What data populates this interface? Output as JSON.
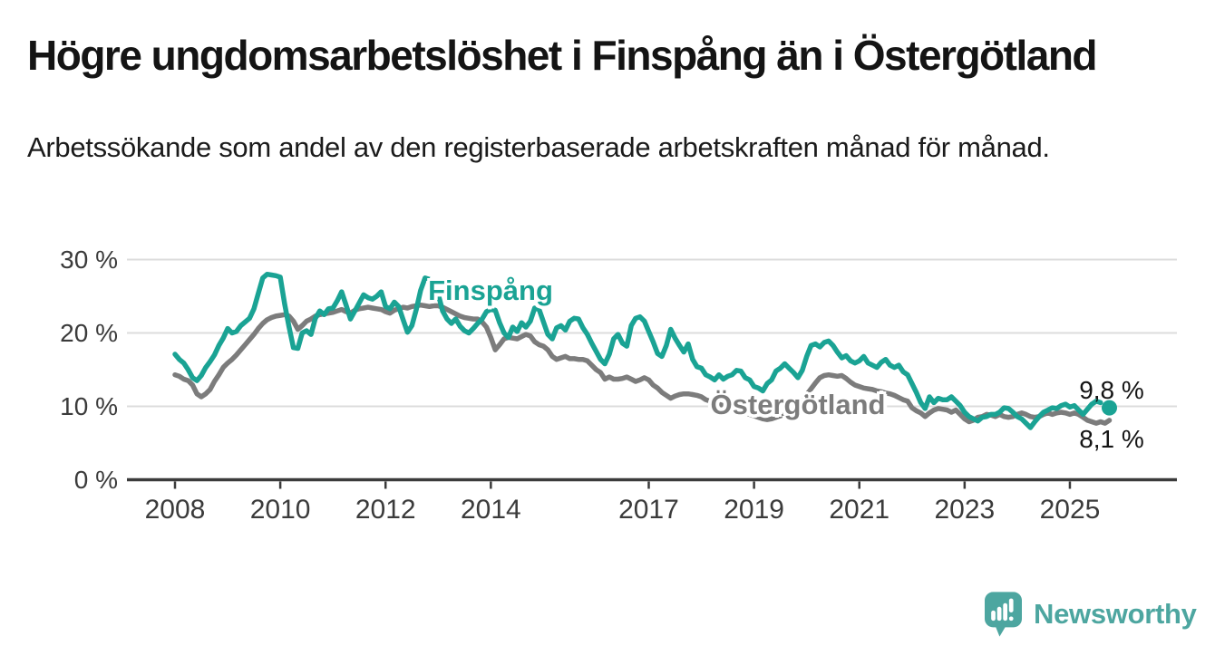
{
  "header": {
    "title": "Högre ungdomsarbetslöshet i Finspång än i Östergötland",
    "subtitle": "Arbetssökande som andel av den registerbaserade arbetskraften månad för månad."
  },
  "chart_data": {
    "type": "line",
    "title": "Högre ungdomsarbetslöshet i Finspång än i Östergötland",
    "subtitle": "Arbetssökande som andel av den registerbaserade arbetskraften månad för månad.",
    "x_unit": "month",
    "x_start": "2008-01",
    "x_end": "2025-10",
    "xticks": [
      2008,
      2010,
      2012,
      2014,
      2017,
      2019,
      2021,
      2023,
      2025
    ],
    "yticks": [
      {
        "value": 0,
        "label": "0 %"
      },
      {
        "value": 10,
        "label": "10 %"
      },
      {
        "value": 20,
        "label": "20 %"
      },
      {
        "value": 30,
        "label": "30 %"
      }
    ],
    "ylim": [
      0,
      32
    ],
    "grid": "horizontal-only",
    "legend": "inline-labels",
    "series": [
      {
        "name": "Finspång",
        "color": "#1AA394",
        "end_label": "9,8 %",
        "end_value": 9.8,
        "end_dot": true,
        "dashed_tail_from_index": 209,
        "values": [
          17.1,
          16.4,
          15.9,
          15.0,
          13.9,
          13.5,
          14.2,
          15.3,
          16.1,
          17.0,
          18.3,
          19.3,
          20.6,
          20.0,
          20.2,
          21.0,
          21.5,
          22.0,
          23.3,
          25.4,
          27.5,
          28.0,
          27.9,
          27.8,
          27.6,
          23.9,
          20.8,
          18.0,
          17.9,
          20.0,
          20.3,
          19.8,
          22.0,
          23.0,
          22.5,
          23.3,
          23.4,
          24.4,
          25.6,
          23.8,
          21.9,
          23.0,
          24.1,
          25.2,
          24.8,
          24.6,
          25.0,
          25.6,
          23.6,
          23.3,
          24.2,
          23.6,
          21.8,
          20.1,
          21.0,
          23.2,
          25.8,
          27.5,
          27.3,
          26.5,
          25.3,
          23.0,
          21.9,
          21.3,
          21.9,
          20.9,
          20.3,
          20.0,
          20.6,
          21.3,
          21.9,
          22.9,
          23.2,
          23.1,
          21.4,
          20.0,
          19.4,
          20.8,
          20.2,
          21.4,
          20.8,
          21.6,
          23.4,
          23.2,
          21.5,
          19.8,
          19.2,
          20.7,
          21.0,
          20.4,
          21.6,
          22.0,
          21.9,
          20.7,
          19.8,
          18.6,
          17.5,
          16.4,
          15.8,
          17.1,
          19.2,
          19.8,
          18.6,
          18.2,
          21.0,
          22.0,
          22.2,
          21.6,
          20.2,
          18.8,
          17.2,
          16.8,
          18.3,
          20.5,
          19.3,
          18.3,
          17.4,
          18.5,
          16.4,
          15.4,
          15.2,
          14.3,
          14.0,
          13.6,
          14.3,
          13.7,
          14.1,
          14.3,
          14.9,
          14.8,
          13.9,
          13.6,
          12.7,
          12.5,
          12.1,
          13.1,
          13.6,
          14.8,
          15.2,
          15.8,
          15.2,
          14.6,
          13.9,
          14.9,
          16.8,
          18.3,
          18.5,
          18.1,
          18.7,
          18.9,
          18.3,
          17.4,
          16.6,
          16.9,
          16.2,
          15.9,
          16.2,
          16.8,
          15.9,
          15.6,
          15.3,
          16.0,
          16.4,
          15.6,
          15.3,
          15.6,
          14.7,
          14.3,
          13.1,
          11.9,
          10.5,
          9.7,
          11.3,
          10.5,
          11.1,
          10.9,
          10.9,
          11.3,
          10.7,
          10.1,
          9.2,
          8.6,
          8.3,
          8.0,
          8.5,
          8.6,
          8.9,
          8.9,
          9.2,
          9.8,
          9.7,
          9.2,
          8.6,
          8.3,
          7.7,
          7.1,
          7.9,
          8.6,
          9.2,
          9.5,
          9.8,
          9.7,
          10.1,
          10.3,
          9.9,
          10.1,
          9.5,
          8.9,
          9.6,
          10.3,
          10.7,
          10.5,
          10.2,
          9.8
        ]
      },
      {
        "name": "Östergötland",
        "color": "#7C7C7C",
        "end_label": "8,1 %",
        "end_value": 8.1,
        "end_dot": false,
        "values": [
          14.3,
          14.1,
          13.7,
          13.5,
          12.9,
          11.7,
          11.3,
          11.7,
          12.3,
          13.4,
          14.3,
          15.3,
          15.9,
          16.4,
          17.0,
          17.7,
          18.4,
          19.1,
          19.8,
          20.6,
          21.3,
          21.8,
          22.1,
          22.3,
          22.4,
          22.5,
          22.3,
          21.6,
          20.5,
          21.0,
          21.6,
          21.9,
          22.3,
          22.5,
          22.6,
          22.7,
          22.8,
          23.0,
          23.2,
          22.9,
          22.7,
          23.1,
          23.3,
          23.4,
          23.5,
          23.4,
          23.3,
          23.2,
          22.9,
          22.7,
          23.1,
          23.3,
          23.5,
          23.4,
          23.6,
          23.7,
          23.8,
          23.7,
          23.6,
          23.7,
          23.7,
          23.5,
          23.2,
          22.9,
          22.6,
          22.3,
          22.1,
          22.0,
          21.9,
          21.9,
          21.5,
          20.8,
          19.4,
          17.7,
          18.4,
          19.2,
          19.4,
          19.3,
          19.2,
          19.5,
          19.8,
          19.6,
          18.8,
          18.4,
          18.2,
          17.7,
          16.8,
          16.4,
          16.6,
          16.8,
          16.5,
          16.5,
          16.4,
          16.4,
          16.2,
          15.6,
          15.0,
          14.6,
          13.7,
          14.0,
          13.7,
          13.7,
          13.8,
          14.0,
          13.7,
          13.4,
          13.6,
          13.9,
          13.6,
          12.9,
          12.5,
          11.9,
          11.5,
          11.1,
          11.4,
          11.6,
          11.7,
          11.7,
          11.6,
          11.5,
          11.3,
          10.9,
          10.7,
          10.5,
          10.3,
          10.1,
          9.9,
          9.7,
          9.5,
          9.3,
          9.1,
          8.9,
          8.7,
          8.5,
          8.3,
          8.2,
          8.3,
          8.5,
          8.7,
          8.9,
          9.2,
          9.7,
          10.3,
          10.9,
          11.6,
          12.4,
          13.2,
          13.9,
          14.2,
          14.3,
          14.2,
          14.1,
          14.2,
          13.8,
          13.3,
          12.9,
          12.7,
          12.5,
          12.4,
          12.3,
          12.1,
          12.0,
          11.8,
          11.7,
          11.5,
          11.2,
          10.9,
          10.7,
          9.8,
          9.4,
          9.1,
          8.6,
          9.1,
          9.5,
          9.7,
          9.6,
          9.5,
          9.2,
          9.5,
          8.9,
          8.3,
          7.9,
          8.1,
          8.5,
          8.6,
          8.9,
          8.8,
          8.6,
          8.9,
          8.6,
          8.5,
          8.6,
          8.9,
          9.1,
          8.9,
          8.6,
          8.5,
          8.6,
          8.9,
          9.1,
          8.9,
          9.1,
          9.2,
          9.1,
          8.9,
          9.1,
          8.9,
          8.5,
          8.1,
          7.9,
          7.7,
          7.9,
          7.7,
          8.1
        ]
      }
    ]
  },
  "footer": {
    "brand": "Newsworthy",
    "logo_color": "#4DA6A0"
  },
  "style": {
    "axis_color": "#3b3b3b",
    "gridline_color": "#dcdcdc",
    "background": "#ffffff"
  }
}
